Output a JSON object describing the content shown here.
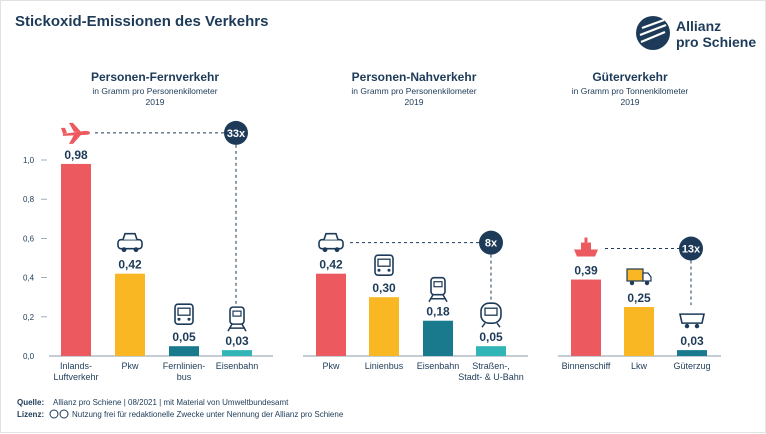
{
  "title": "Stickoxid-Emissionen des Verkehrs",
  "brand": {
    "line1": "Allianz",
    "line2": "pro Schiene",
    "color": "#1d3b58"
  },
  "footer": {
    "source_label": "Quelle:",
    "source_text": "Allianz pro Schiene | 08/2021 | mit Material von Umweltbundesamt",
    "license_label": "Lizenz:",
    "license_text": "Nutzung frei für redaktionelle Zwecke unter Nennung der Allianz pro Schiene"
  },
  "colors": {
    "red": "#ec5a5f",
    "yellow": "#f9b823",
    "teal": "#197a8e",
    "cyan": "#31b5b7",
    "navy": "#1d3b58"
  },
  "chart_data": [
    {
      "type": "bar",
      "title": "Personen-Fernverkehr",
      "subtitle": "in Gramm pro Personenkilometer",
      "year": "2019",
      "yticks": [
        "0,0",
        "0,2",
        "0,4",
        "0,6",
        "0,8",
        "1,0"
      ],
      "ylim": [
        0,
        1.0
      ],
      "categories": [
        [
          "Inlands-",
          "Luftverkehr"
        ],
        [
          "Pkw"
        ],
        [
          "Fernlinien-",
          "bus"
        ],
        [
          "Eisenbahn"
        ]
      ],
      "values": [
        0.98,
        0.42,
        0.05,
        0.03
      ],
      "labels": [
        "0,98",
        "0,42",
        "0,05",
        "0,03"
      ],
      "bar_colors": [
        "#ec5a5f",
        "#f9b823",
        "#197a8e",
        "#31b5b7"
      ],
      "icons": [
        "airplane-icon",
        "car-icon",
        "bus-icon",
        "train-icon"
      ],
      "ratio": "33x"
    },
    {
      "type": "bar",
      "title": "Personen-Nahverkehr",
      "subtitle": "in Gramm pro Personenkilometer",
      "year": "2019",
      "ylim": [
        0,
        1.0
      ],
      "categories": [
        [
          "Pkw"
        ],
        [
          "Linienbus"
        ],
        [
          "Eisenbahn"
        ],
        [
          "Straßen-,",
          "Stadt- & U-Bahn"
        ]
      ],
      "values": [
        0.42,
        0.3,
        0.18,
        0.05
      ],
      "labels": [
        "0,42",
        "0,30",
        "0,18",
        "0,05"
      ],
      "bar_colors": [
        "#ec5a5f",
        "#f9b823",
        "#197a8e",
        "#31b5b7"
      ],
      "icons": [
        "car-icon",
        "bus-icon",
        "train-icon",
        "tram-icon"
      ],
      "ratio": "8x"
    },
    {
      "type": "bar",
      "title": "Güterverkehr",
      "subtitle": "in Gramm pro Tonnenkilometer",
      "year": "2019",
      "ylim": [
        0,
        1.0
      ],
      "categories": [
        [
          "Binnenschiff"
        ],
        [
          "Lkw"
        ],
        [
          "Güterzug"
        ]
      ],
      "values": [
        0.39,
        0.25,
        0.03
      ],
      "labels": [
        "0,39",
        "0,25",
        "0,03"
      ],
      "bar_colors": [
        "#ec5a5f",
        "#f9b823",
        "#197a8e"
      ],
      "icons": [
        "ship-icon",
        "truck-icon",
        "freight-wagon-icon"
      ],
      "ratio": "13x"
    }
  ]
}
